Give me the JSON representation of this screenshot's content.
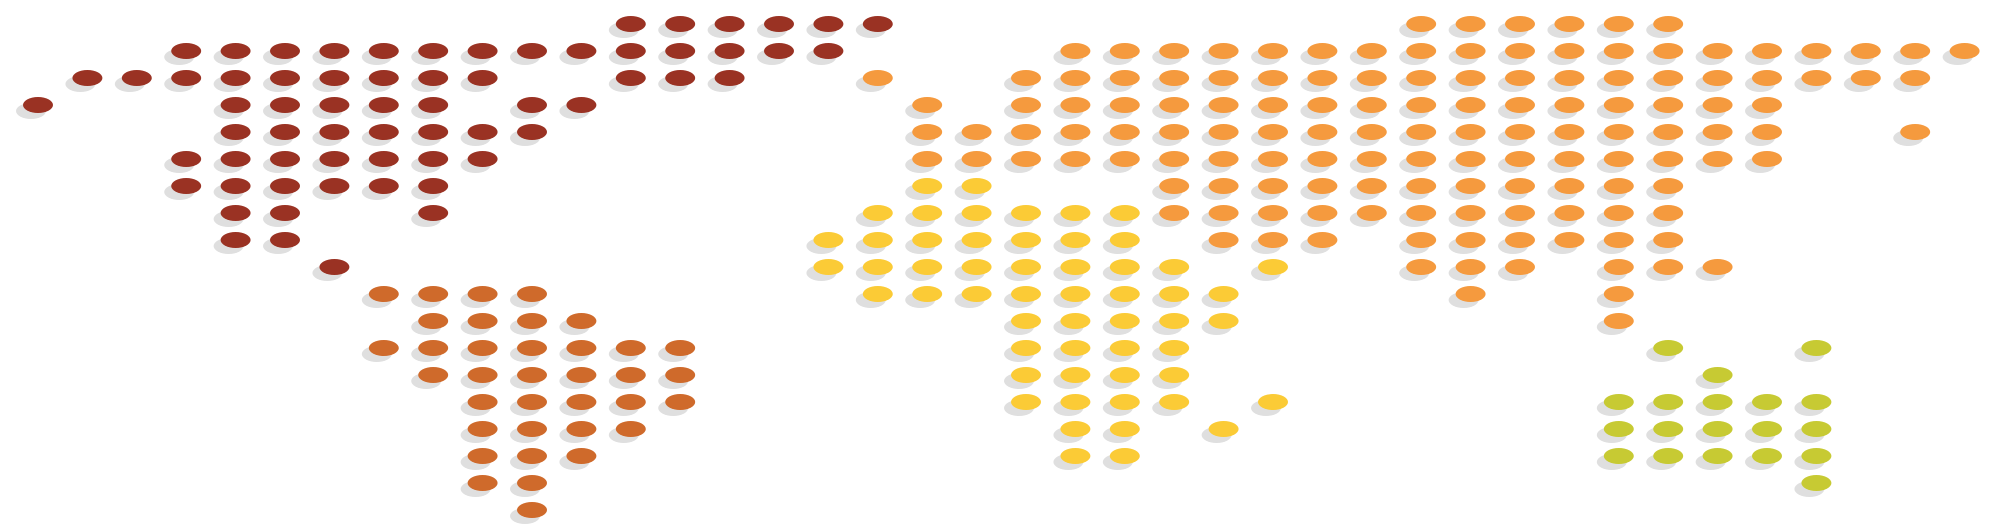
{
  "colors": {
    "north-america": "#9A3223",
    "south-america": "#CF6A2B",
    "eurasia": "#F59A3E",
    "africa": "#FBCB36",
    "oceania": "#C7CA33",
    "shadow": "#DFDFDF",
    "background": "#FFFFFF"
  },
  "regions": [
    {
      "id": "north-america",
      "rows": [
        {
          "r": 0,
          "cols": [
            [
              12,
              17
            ]
          ]
        },
        {
          "r": 1,
          "cols": [
            [
              3,
              16
            ]
          ]
        },
        {
          "r": 2,
          "cols": [
            [
              1,
              9
            ],
            [
              12,
              14
            ]
          ]
        },
        {
          "r": 3,
          "cols": [
            [
              0,
              0
            ],
            [
              4,
              8
            ],
            [
              10,
              11
            ]
          ]
        },
        {
          "r": 4,
          "cols": [
            [
              4,
              10
            ]
          ]
        },
        {
          "r": 5,
          "cols": [
            [
              3,
              9
            ]
          ]
        },
        {
          "r": 6,
          "cols": [
            [
              3,
              8
            ]
          ]
        },
        {
          "r": 7,
          "cols": [
            [
              4,
              5
            ],
            [
              8,
              8
            ]
          ]
        },
        {
          "r": 8,
          "cols": [
            [
              4,
              5
            ]
          ]
        },
        {
          "r": 9,
          "cols": [
            [
              6,
              6
            ]
          ]
        }
      ]
    },
    {
      "id": "south-america",
      "rows": [
        {
          "r": 10,
          "cols": [
            [
              7,
              10
            ]
          ]
        },
        {
          "r": 11,
          "cols": [
            [
              8,
              11
            ]
          ]
        },
        {
          "r": 12,
          "cols": [
            [
              7,
              13
            ]
          ]
        },
        {
          "r": 13,
          "cols": [
            [
              8,
              13
            ]
          ]
        },
        {
          "r": 14,
          "cols": [
            [
              9,
              13
            ]
          ]
        },
        {
          "r": 15,
          "cols": [
            [
              9,
              12
            ]
          ]
        },
        {
          "r": 16,
          "cols": [
            [
              9,
              11
            ]
          ]
        },
        {
          "r": 17,
          "cols": [
            [
              9,
              10
            ]
          ]
        },
        {
          "r": 18,
          "cols": [
            [
              10,
              10
            ]
          ]
        }
      ]
    },
    {
      "id": "eurasia",
      "rows": [
        {
          "r": 0,
          "cols": [
            [
              28,
              33
            ]
          ]
        },
        {
          "r": 1,
          "cols": [
            [
              21,
              39
            ]
          ]
        },
        {
          "r": 2,
          "cols": [
            [
              17,
              17
            ],
            [
              20,
              38
            ]
          ]
        },
        {
          "r": 3,
          "cols": [
            [
              18,
              18
            ],
            [
              20,
              35
            ]
          ]
        },
        {
          "r": 4,
          "cols": [
            [
              18,
              35
            ],
            [
              38,
              38
            ]
          ]
        },
        {
          "r": 5,
          "cols": [
            [
              18,
              35
            ]
          ]
        },
        {
          "r": 6,
          "cols": [
            [
              23,
              33
            ]
          ]
        },
        {
          "r": 7,
          "cols": [
            [
              23,
              27
            ],
            [
              28,
              33
            ]
          ]
        },
        {
          "r": 8,
          "cols": [
            [
              24,
              26
            ],
            [
              28,
              33
            ]
          ]
        },
        {
          "r": 9,
          "cols": [
            [
              28,
              30
            ],
            [
              32,
              34
            ]
          ]
        },
        {
          "r": 10,
          "cols": [
            [
              29,
              29
            ],
            [
              32,
              32
            ]
          ]
        },
        {
          "r": 11,
          "cols": [
            [
              32,
              32
            ]
          ]
        }
      ]
    },
    {
      "id": "africa",
      "rows": [
        {
          "r": 6,
          "cols": [
            [
              18,
              19
            ]
          ]
        },
        {
          "r": 7,
          "cols": [
            [
              17,
              22
            ]
          ]
        },
        {
          "r": 8,
          "cols": [
            [
              16,
              22
            ]
          ]
        },
        {
          "r": 9,
          "cols": [
            [
              16,
              23
            ],
            [
              25,
              25
            ]
          ]
        },
        {
          "r": 10,
          "cols": [
            [
              17,
              24
            ]
          ]
        },
        {
          "r": 11,
          "cols": [
            [
              20,
              24
            ]
          ]
        },
        {
          "r": 12,
          "cols": [
            [
              20,
              23
            ]
          ]
        },
        {
          "r": 13,
          "cols": [
            [
              20,
              23
            ]
          ]
        },
        {
          "r": 14,
          "cols": [
            [
              20,
              23
            ],
            [
              25,
              25
            ]
          ]
        },
        {
          "r": 15,
          "cols": [
            [
              21,
              22
            ],
            [
              24,
              24
            ]
          ]
        },
        {
          "r": 16,
          "cols": [
            [
              21,
              22
            ]
          ]
        }
      ]
    },
    {
      "id": "oceania",
      "rows": [
        {
          "r": 12,
          "cols": [
            [
              33,
              33
            ],
            [
              36,
              36
            ]
          ]
        },
        {
          "r": 13,
          "cols": [
            [
              34,
              34
            ]
          ]
        },
        {
          "r": 14,
          "cols": [
            [
              32,
              36
            ]
          ]
        },
        {
          "r": 15,
          "cols": [
            [
              32,
              36
            ]
          ]
        },
        {
          "r": 16,
          "cols": [
            [
              32,
              36
            ]
          ]
        },
        {
          "r": 17,
          "cols": [
            [
              36,
              36
            ]
          ]
        }
      ]
    }
  ]
}
